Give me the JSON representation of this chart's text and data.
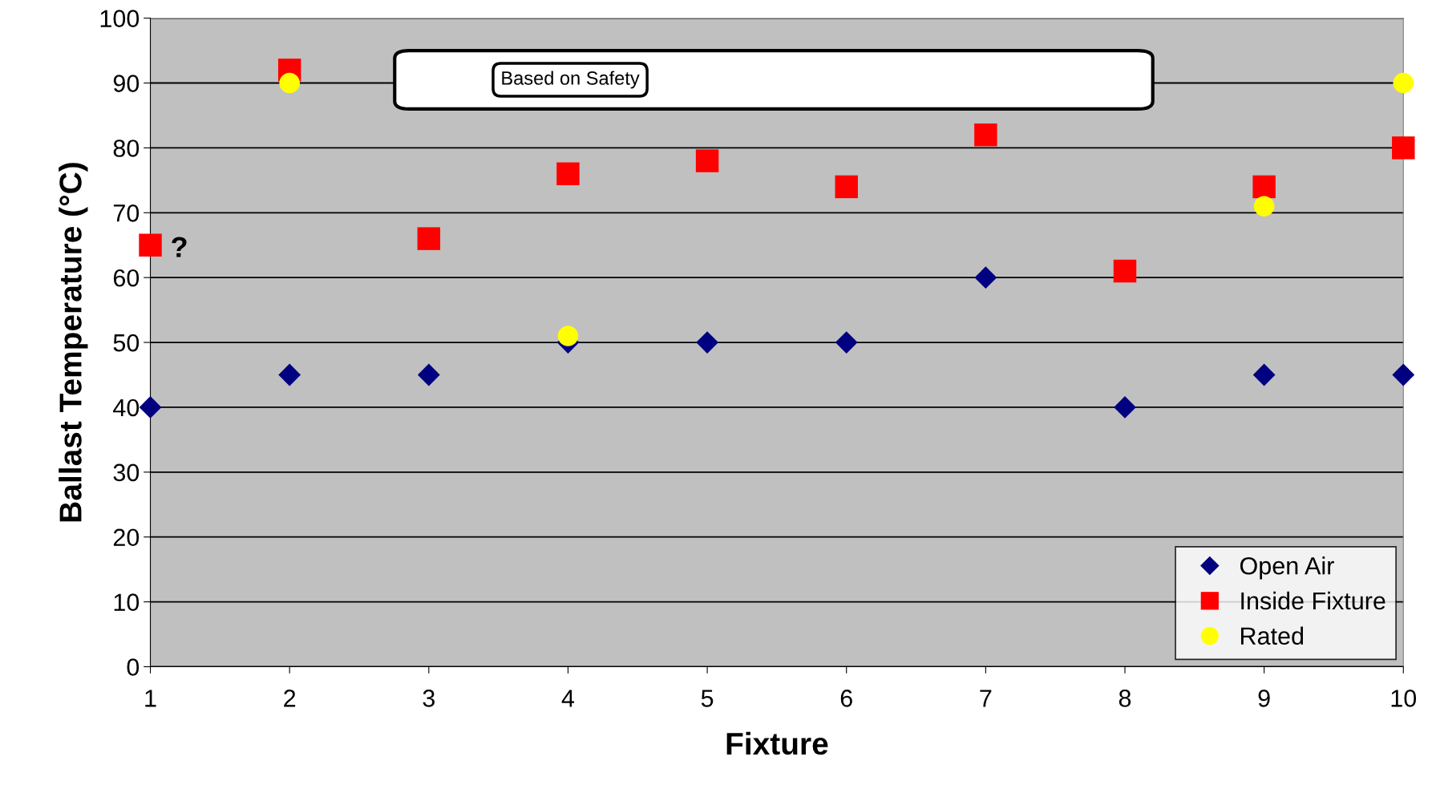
{
  "chart_data": {
    "type": "scatter",
    "xlabel": "Fixture",
    "ylabel": "Ballast Temperature (°C)",
    "x": [
      1,
      2,
      3,
      4,
      5,
      6,
      7,
      8,
      9,
      10
    ],
    "xlim": [
      1,
      10
    ],
    "xticks": [
      1,
      2,
      3,
      4,
      5,
      6,
      7,
      8,
      9,
      10
    ],
    "ylim": [
      0,
      100
    ],
    "yticks": [
      0,
      10,
      20,
      30,
      40,
      50,
      60,
      70,
      80,
      90,
      100
    ],
    "grid": "y",
    "legend": "bottom right",
    "series": [
      {
        "name": "Open Air",
        "color": "#000080",
        "marker": "diamond",
        "values": [
          40,
          45,
          45,
          50,
          50,
          50,
          60,
          40,
          45,
          45
        ]
      },
      {
        "name": "Inside Fixture",
        "color": "#ff0000",
        "marker": "square",
        "values": [
          65,
          92,
          66,
          76,
          78,
          74,
          82,
          61,
          74,
          80
        ]
      },
      {
        "name": "Rated",
        "color": "#ffff00",
        "marker": "circle",
        "values": [
          null,
          90,
          null,
          51,
          null,
          null,
          null,
          null,
          71,
          90
        ]
      }
    ],
    "annotations": [
      {
        "text": "?",
        "x": 1,
        "y": 65
      },
      "Based on Safety"
    ]
  }
}
